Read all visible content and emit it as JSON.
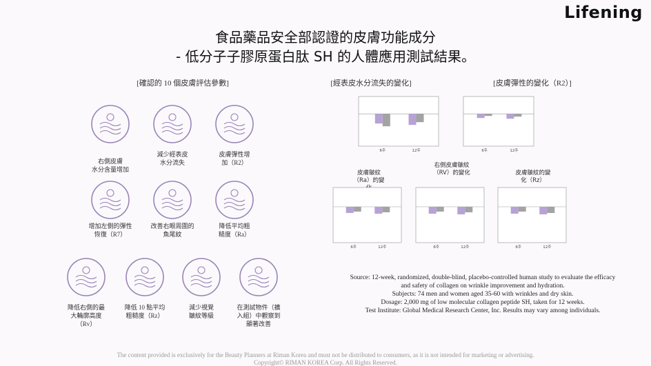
{
  "header": {
    "title_lines": [
      "食品藥品安全部認證的皮膚功能成分",
      "- 低分子子膠原蛋白肽 SH 的人體應用測試結果。"
    ],
    "logo": "Lifening"
  },
  "parameters": {
    "heading": "[確認的 10 個皮膚評估參數]",
    "items": [
      "右側皮膚\n水分含量增加",
      "減少經表皮\n水分流失",
      "皮膚彈性增\n加（R2）",
      "增加左側的彈性\n恢復（R7）",
      "改善右眼周圍的\n魚尾紋",
      "降低平均粗\n糙度（Ra）",
      "降低右側的最\n大輪廓高度\n（Rv）",
      "降低 10 點平均\n粗糙度（Rz）",
      "減少視覺\n皺紋等級",
      "在測試物件（擴\n入組）中觀察到\n顯著改善"
    ]
  },
  "charts": [
    {
      "title": "[經表皮水分流失的變化]",
      "x_labels": [
        "6주",
        "12주"
      ]
    },
    {
      "title": "[皮膚彈性的變化（R2）]",
      "x_labels": [
        "6주",
        "12주"
      ]
    },
    {
      "title": "皮膚皺紋\n（Ra）的變\n化",
      "x_labels": [
        "6주",
        "12주"
      ]
    },
    {
      "title": "右側皮膚皺紋\n（RV）的變化",
      "x_labels": [
        "6주",
        "12주"
      ]
    },
    {
      "title": "皮膚皺紋的變\n化（Rz）",
      "x_labels": [
        "6주",
        "12주"
      ]
    }
  ],
  "source": {
    "lines": [
      "Source: 12-week, randomized, double-blind, placebo-controlled human study to evaluate the efficacy",
      "and safety of collagen on wrinkle improvement and hydration.",
      "Subjects: 74 men and women aged 35-60 with wrinkles and dry skin.",
      "Dosage: 2,000 mg of low molecular collagen peptide SH, taken for 12 weeks.",
      "Test Institute: Global Medical Research Center, Inc. Results may vary among individuals."
    ]
  },
  "footer": {
    "lines": [
      "The content provided is exclusively for the Beauty Planners at Riman Korea and must not be distributed to consumers, as it is not intended for marketing or advertising.",
      "Copyright© RIMAN KOREA Corp. All Rights Reserved."
    ]
  }
}
